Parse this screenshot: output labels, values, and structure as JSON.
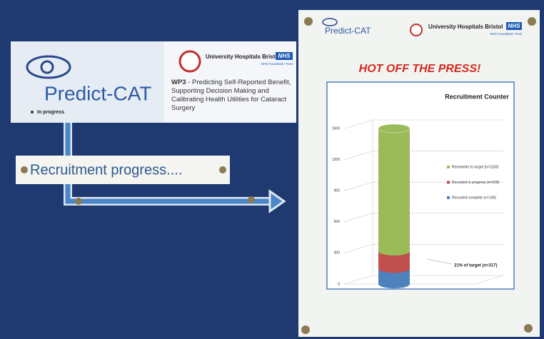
{
  "header": {
    "logo": "Predict-CAT",
    "hospital": "University Hospitals Bristol",
    "nhs": "NHS",
    "trust": "NHS Foundation Trust",
    "wp_label": "WP3",
    "wp_text": " - Predicting Self-Reported Benefit, Supporting Decision Making and Calibrating Health Utilities for Cataract Surgery",
    "status": "In progress"
  },
  "sign": "Recruitment progress....",
  "poster": {
    "logo": "Predict-CAT",
    "hospital": "University Hospitals Bristol",
    "nhs": "NHS",
    "trust": "NHS Foundation Trust",
    "headline": "HOT OFF THE PRESS!"
  },
  "chart_data": {
    "type": "bar",
    "stacked": true,
    "title": "Recruitment Counter",
    "categories": [
      null
    ],
    "series": [
      {
        "name": "Recruited complete (n=149)",
        "color": "#4f81bd",
        "values": [
          149
        ]
      },
      {
        "name": "Recruited in progress (n=168)",
        "color": "#c0504d",
        "values": [
          168
        ]
      },
      {
        "name": "Remainder to target (n=1183)",
        "color": "#9bbb59",
        "values": [
          1183
        ]
      }
    ],
    "ylim": [
      0,
      1500
    ],
    "yticks": [
      0,
      300,
      600,
      900,
      1200,
      1500
    ],
    "grid": true,
    "annotation": "21% of target (n=317)"
  }
}
